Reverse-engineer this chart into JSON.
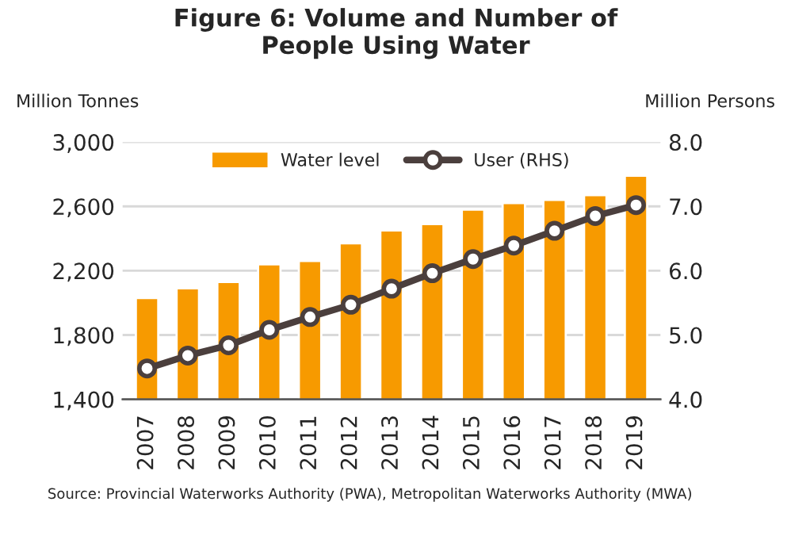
{
  "chart_data": {
    "type": "bar",
    "title": "Figure 6: Volume and Number of\nPeople Using Water",
    "ylabel": "Million Tonnes",
    "y2label": "Million Persons",
    "categories": [
      "2007",
      "2008",
      "2009",
      "2010",
      "2011",
      "2012",
      "2013",
      "2014",
      "2015",
      "2016",
      "2017",
      "2018",
      "2019"
    ],
    "series": [
      {
        "name": "Water level",
        "color": "#f79a00",
        "values": [
          2030,
          2090,
          2130,
          2240,
          2260,
          2370,
          2450,
          2490,
          2580,
          2620,
          2640,
          2670,
          2790
        ]
      },
      {
        "name": "User (RHS)",
        "type": "line",
        "axis": "y2",
        "color": "#4b3f3d",
        "marker": "circle",
        "values": [
          4.48,
          4.68,
          4.84,
          5.08,
          5.28,
          5.47,
          5.72,
          5.96,
          6.18,
          6.39,
          6.62,
          6.85,
          7.02
        ]
      }
    ],
    "ylim": [
      1400,
      3000
    ],
    "yticks": [
      {
        "value": 1400,
        "label": "1,400"
      },
      {
        "value": 1800,
        "label": "1,800"
      },
      {
        "value": 2200,
        "label": "2,200"
      },
      {
        "value": 2600,
        "label": "2,600"
      },
      {
        "value": 3000,
        "label": "3,000"
      }
    ],
    "y2lim": [
      4,
      8
    ],
    "y2ticks": [
      {
        "value": 4,
        "label": "4.0"
      },
      {
        "value": 5,
        "label": "5.0"
      },
      {
        "value": 6,
        "label": "6.0"
      },
      {
        "value": 7,
        "label": "7.0"
      },
      {
        "value": 8,
        "label": "8.0"
      }
    ],
    "grid": "y",
    "legend": "top",
    "annotations": [
      "Source: Provincial Waterworks Authority (PWA), Metropolitan Waterworks Authority (MWA)"
    ]
  }
}
